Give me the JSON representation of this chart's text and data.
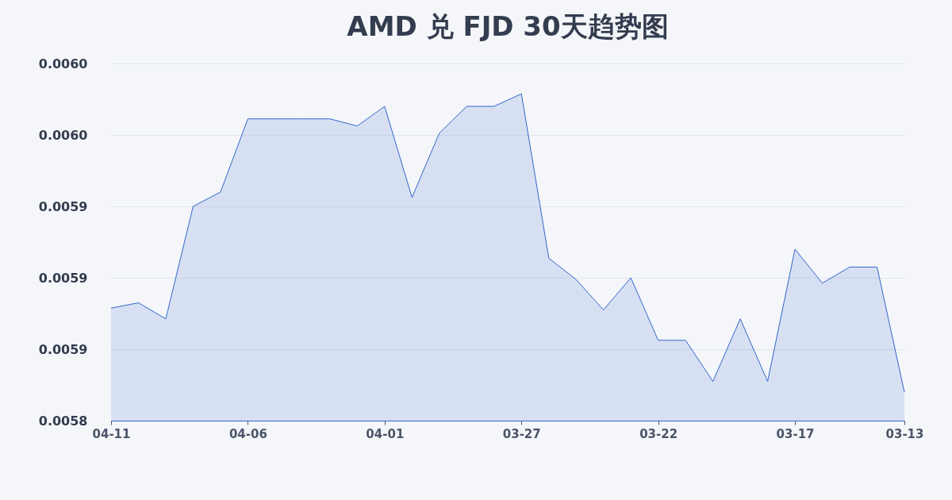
{
  "chart_data": {
    "type": "area",
    "title": "AMD 兑 FJD 30天趋势图",
    "categories": [
      "04-11",
      null,
      null,
      null,
      null,
      "04-06",
      null,
      null,
      null,
      null,
      "04-01",
      null,
      null,
      null,
      null,
      "03-27",
      null,
      null,
      null,
      null,
      "03-22",
      null,
      null,
      null,
      null,
      "03-17",
      null,
      null,
      null,
      "03-13"
    ],
    "series": [
      {
        "color": "#3366cc",
        "values": [
          0.005883,
          0.005886,
          0.005877,
          0.00594,
          0.005948,
          0.005989,
          0.005989,
          0.005989,
          0.005989,
          0.005985,
          0.005996,
          0.005945,
          0.005981,
          0.005996,
          0.005996,
          0.006003,
          0.005911,
          0.005899,
          0.005882,
          0.0059,
          0.005865,
          0.005865,
          0.005842,
          0.005877,
          0.005842,
          0.005916,
          0.005897,
          0.005906,
          0.005906,
          0.005836
        ]
      }
    ],
    "ylim": [
      0.00582,
      0.00602
    ],
    "yticks": [
      {
        "value": 0.00582,
        "label": "0.0058"
      },
      {
        "value": 0.00586,
        "label": "0.0059"
      },
      {
        "value": 0.0059,
        "label": "0.0059"
      },
      {
        "value": 0.00594,
        "label": "0.0059"
      },
      {
        "value": 0.00598,
        "label": "0.0060"
      },
      {
        "value": 0.00602,
        "label": "0.0060"
      }
    ],
    "grid": "y"
  }
}
